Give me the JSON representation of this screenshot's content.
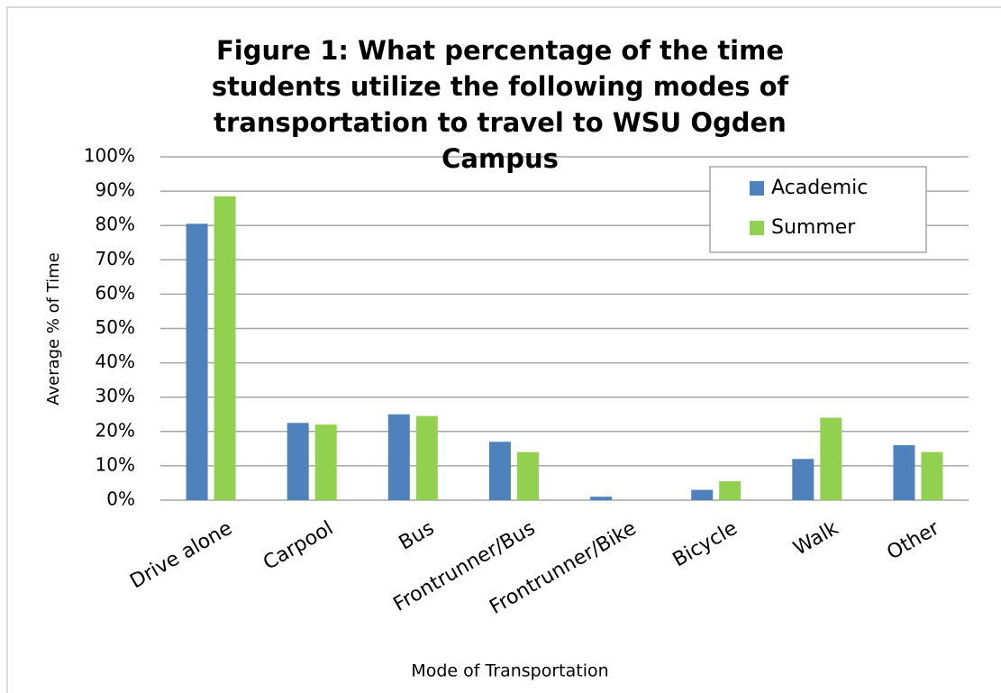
{
  "chart_data": {
    "type": "bar",
    "title": "Figure 1: What percentage of the time students utilize the following modes of transportation to travel to WSU Ogden Campus",
    "xlabel": "Mode of Transportation",
    "ylabel": "Average % of Time",
    "categories": [
      "Drive alone",
      "Carpool",
      "Bus",
      "Frontrunner/Bus",
      "Frontrunner/Bike",
      "Bicycle",
      "Walk",
      "Other"
    ],
    "series": [
      {
        "name": "Academic",
        "color": "#4f81bd",
        "values": [
          80.5,
          22.5,
          25,
          17,
          1,
          3,
          12,
          16
        ]
      },
      {
        "name": "Summer",
        "color": "#92d050",
        "values": [
          88.5,
          22,
          24.5,
          14,
          0,
          5.5,
          24,
          14
        ]
      }
    ],
    "ylim": [
      0,
      100
    ],
    "yticks": [
      {
        "value": 0,
        "label": "0%"
      },
      {
        "value": 10,
        "label": "10%"
      },
      {
        "value": 20,
        "label": "20%"
      },
      {
        "value": 30,
        "label": "30%"
      },
      {
        "value": 40,
        "label": "40%"
      },
      {
        "value": 50,
        "label": "50%"
      },
      {
        "value": 60,
        "label": "60%"
      },
      {
        "value": 70,
        "label": "70%"
      },
      {
        "value": 80,
        "label": "80%"
      },
      {
        "value": 90,
        "label": "90%"
      },
      {
        "value": 100,
        "label": "100%"
      }
    ],
    "grid": true,
    "legend": "upper right"
  }
}
